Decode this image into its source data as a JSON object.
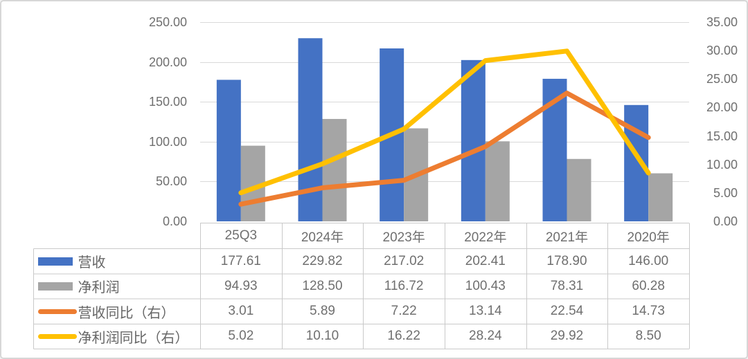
{
  "chart_data": {
    "type": "combo",
    "title": "",
    "categories": [
      "25Q3",
      "2024年",
      "2023年",
      "2022年",
      "2021年",
      "2020年"
    ],
    "series": [
      {
        "name": "营收",
        "type": "bar",
        "axis": "left",
        "color": "#4472C4",
        "values": [
          177.61,
          229.82,
          217.02,
          202.41,
          178.9,
          146.0
        ],
        "display": [
          "177.61",
          "229.82",
          "217.02",
          "202.41",
          "178.90",
          "146.00"
        ]
      },
      {
        "name": "净利润",
        "type": "bar",
        "axis": "left",
        "color": "#A5A5A5",
        "values": [
          94.93,
          128.5,
          116.72,
          100.43,
          78.31,
          60.28
        ],
        "display": [
          "94.93",
          "128.50",
          "116.72",
          "100.43",
          "78.31",
          "60.28"
        ]
      },
      {
        "name": "营收同比（右）",
        "type": "line",
        "axis": "right",
        "color": "#ED7D31",
        "values": [
          3.01,
          5.89,
          7.22,
          13.14,
          22.54,
          14.73
        ],
        "display": [
          "3.01",
          "5.89",
          "7.22",
          "13.14",
          "22.54",
          "14.73"
        ]
      },
      {
        "name": "净利润同比（右）",
        "type": "line",
        "axis": "right",
        "color": "#FFC000",
        "values": [
          5.02,
          10.1,
          16.22,
          28.24,
          29.92,
          8.5
        ],
        "display": [
          "5.02",
          "10.10",
          "16.22",
          "28.24",
          "29.92",
          "8.50"
        ]
      }
    ],
    "left_axis": {
      "min": 0,
      "max": 250,
      "step": 50,
      "tick_labels": [
        "0.00",
        "50.00",
        "100.00",
        "150.00",
        "200.00",
        "250.00"
      ]
    },
    "right_axis": {
      "min": 0,
      "max": 35,
      "step": 5,
      "tick_labels": [
        "0.00",
        "5.00",
        "10.00",
        "15.00",
        "20.00",
        "25.00",
        "30.00",
        "35.00"
      ]
    },
    "grid": true,
    "legend_position": "table-left",
    "data_table_shown": true
  },
  "style": {
    "grid_color": "#d9d9d9",
    "table_border_color": "#c9c9c9",
    "text_color": "#6f6f6f",
    "background": "#ffffff"
  }
}
